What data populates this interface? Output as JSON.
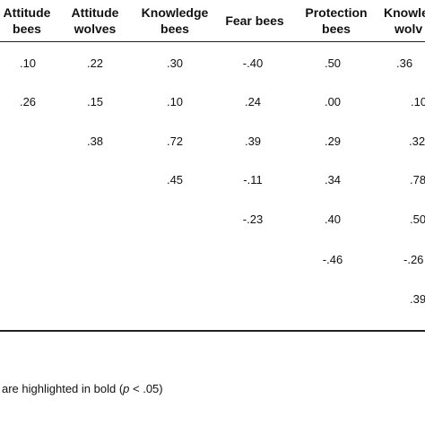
{
  "headers": [
    {
      "lines": [
        "Attitude",
        "bees"
      ]
    },
    {
      "lines": [
        "Attitude",
        "wolves"
      ]
    },
    {
      "lines": [
        "Knowledge",
        "bees"
      ]
    },
    {
      "lines": [
        "Fear bees"
      ]
    },
    {
      "lines": [
        "Protection",
        "bees"
      ]
    },
    {
      "lines": [
        "Knowle",
        "wolv"
      ]
    }
  ],
  "rows": [
    [
      ".10",
      ".22",
      ".30",
      "-.40",
      ".50",
      ".36"
    ],
    [
      ".26",
      ".15",
      ".10",
      ".24",
      ".00",
      ".10"
    ],
    [
      "",
      ".38",
      ".72",
      ".39",
      ".29",
      ".32"
    ],
    [
      "",
      "",
      ".45",
      "-.11",
      ".34",
      ".78"
    ],
    [
      "",
      "",
      "",
      "-.23",
      ".40",
      ".50"
    ],
    [
      "",
      "",
      "",
      "",
      "-.46",
      "-.26"
    ],
    [
      "",
      "",
      "",
      "",
      "",
      ".39"
    ]
  ],
  "footnote": {
    "pre": "are highlighted in bold (",
    "italic": "p",
    "post": " < .05)"
  }
}
